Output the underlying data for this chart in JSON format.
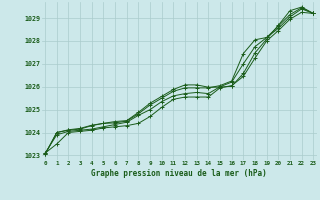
{
  "title": "Graphe pression niveau de la mer (hPa)",
  "background_color": "#cce8ea",
  "grid_color": "#aacccc",
  "line_color": "#1a5c1a",
  "xlim": [
    -0.3,
    23.3
  ],
  "ylim": [
    1022.8,
    1029.7
  ],
  "xtick_labels": [
    "0",
    "1",
    "2",
    "3",
    "4",
    "5",
    "6",
    "7",
    "8",
    "9",
    "10",
    "11",
    "12",
    "13",
    "14",
    "15",
    "16",
    "17",
    "18",
    "19",
    "20",
    "21",
    "22",
    "23"
  ],
  "ytick_values": [
    1023,
    1024,
    1025,
    1026,
    1027,
    1028,
    1029
  ],
  "series": [
    [
      1023.1,
      1023.5,
      1024.0,
      1024.05,
      1024.1,
      1024.2,
      1024.25,
      1024.3,
      1024.4,
      1024.7,
      1025.1,
      1025.45,
      1025.55,
      1025.55,
      1025.55,
      1025.95,
      1026.05,
      1026.45,
      1027.25,
      1028.0,
      1028.45,
      1028.95,
      1029.25,
      1029.2
    ],
    [
      1023.1,
      1023.9,
      1024.05,
      1024.1,
      1024.15,
      1024.25,
      1024.35,
      1024.45,
      1024.75,
      1025.0,
      1025.35,
      1025.6,
      1025.7,
      1025.75,
      1025.7,
      1026.0,
      1026.2,
      1027.0,
      1027.75,
      1028.15,
      1028.55,
      1029.05,
      1029.4,
      1029.2
    ],
    [
      1023.05,
      1024.0,
      1024.1,
      1024.15,
      1024.3,
      1024.4,
      1024.42,
      1024.5,
      1024.82,
      1025.2,
      1025.5,
      1025.8,
      1025.95,
      1025.95,
      1025.95,
      1026.05,
      1026.25,
      1027.45,
      1028.05,
      1028.15,
      1028.65,
      1029.15,
      1029.45,
      1029.2
    ],
    [
      1023.05,
      1024.0,
      1024.12,
      1024.18,
      1024.32,
      1024.4,
      1024.48,
      1024.52,
      1024.88,
      1025.28,
      1025.58,
      1025.88,
      1026.08,
      1026.08,
      1025.98,
      1025.98,
      1026.02,
      1026.58,
      1027.48,
      1028.08,
      1028.68,
      1029.32,
      1029.48,
      1029.2
    ]
  ]
}
